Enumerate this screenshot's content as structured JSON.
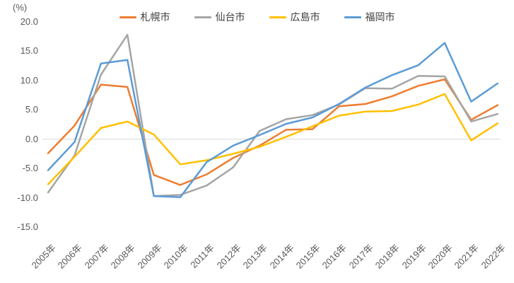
{
  "chart_data": {
    "type": "line",
    "title": "",
    "categories": [
      "2005年",
      "2006年",
      "2007年",
      "2008年",
      "2009年",
      "2010年",
      "2011年",
      "2012年",
      "2013年",
      "2014年",
      "2015年",
      "2016年",
      "2017年",
      "2018年",
      "2019年",
      "2020年",
      "2021年",
      "2022年"
    ],
    "series": [
      {
        "name": "札幌市",
        "color": "#ED7D31",
        "values": [
          -2.4,
          2.3,
          9.3,
          8.9,
          -6.1,
          -7.8,
          -6.0,
          -3.2,
          -1.1,
          1.6,
          1.7,
          5.6,
          6.0,
          7.3,
          9.1,
          10.2,
          3.3,
          5.8
        ]
      },
      {
        "name": "仙台市",
        "color": "#A5A5A5",
        "values": [
          -9.1,
          -2.8,
          11.0,
          17.8,
          -9.7,
          -9.5,
          -7.9,
          -4.8,
          1.4,
          3.4,
          4.1,
          5.9,
          8.7,
          8.6,
          10.8,
          10.7,
          3.0,
          4.3
        ]
      },
      {
        "name": "広島市",
        "color": "#FFC000",
        "values": [
          -7.7,
          -3.0,
          1.9,
          3.0,
          0.8,
          -4.3,
          -3.6,
          -2.5,
          -1.3,
          0.4,
          2.2,
          4.0,
          4.7,
          4.8,
          5.9,
          7.7,
          -0.2,
          2.7
        ]
      },
      {
        "name": "福岡市",
        "color": "#5B9BD5",
        "values": [
          -5.3,
          -0.5,
          12.9,
          13.5,
          -9.7,
          -9.9,
          -3.9,
          -1.1,
          0.7,
          2.6,
          3.7,
          6.0,
          8.8,
          10.9,
          12.6,
          16.4,
          6.4,
          9.5
        ]
      }
    ],
    "y_axis": {
      "unit": "(%)",
      "min": -15.0,
      "max": 20.0,
      "step": 5.0,
      "tick_labels": [
        "20.0",
        "15.0",
        "10.0",
        "5.0",
        "0.0",
        "-5.0",
        "-10.0",
        "-15.0"
      ]
    },
    "x_axis": {
      "tick_rotation_deg": -45
    },
    "gridlines": "zero-line-only",
    "legend_position": "top-center",
    "colors": {
      "background": "#FFFFFF",
      "gridline": "#D9D9D9",
      "axis_text": "#595959",
      "legend_text": "#404040"
    }
  }
}
